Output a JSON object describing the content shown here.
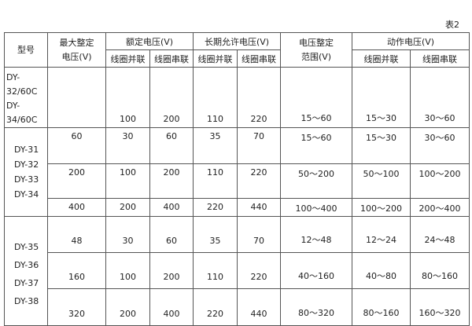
{
  "caption": "表2",
  "headers": {
    "model": "型号",
    "max_setting_voltage": [
      "最大整定",
      "电压(V)"
    ],
    "rated_voltage": "额定电压(V)",
    "long_term_voltage": "长期允许电压(V)",
    "setting_range": [
      "电压整定",
      "范围(V)"
    ],
    "operating_voltage": "动作电压(V)",
    "parallel": "线圈并联",
    "series": "线圈串联"
  },
  "groups": [
    {
      "models": [
        "DY-32/60C",
        "DY-34/60C"
      ],
      "rows": [
        [
          "",
          "100",
          "200",
          "110",
          "220",
          "15～60",
          "15～30",
          "30～60"
        ]
      ]
    },
    {
      "models": [
        "DY-31",
        "DY-32",
        "DY-33",
        "DY-34"
      ],
      "rows": [
        [
          "60",
          "30",
          "60",
          "35",
          "70",
          "15～60",
          "15～30",
          "30～60"
        ],
        [
          "200",
          "100",
          "200",
          "110",
          "220",
          "50～200",
          "50～100",
          "100～200"
        ],
        [
          "400",
          "200",
          "400",
          "220",
          "440",
          "100～400",
          "100～200",
          "200～400"
        ]
      ]
    },
    {
      "models": [
        "DY-35",
        "DY-36",
        "DY-37",
        "DY-38"
      ],
      "rows": [
        [
          "48",
          "30",
          "60",
          "35",
          "70",
          "12～48",
          "12～24",
          "24～48"
        ],
        [
          "160",
          "100",
          "200",
          "110",
          "220",
          "40～160",
          "40～80",
          "80～160"
        ],
        [
          "320",
          "200",
          "400",
          "220",
          "440",
          "80～320",
          "80～160",
          "160～320"
        ]
      ]
    }
  ]
}
